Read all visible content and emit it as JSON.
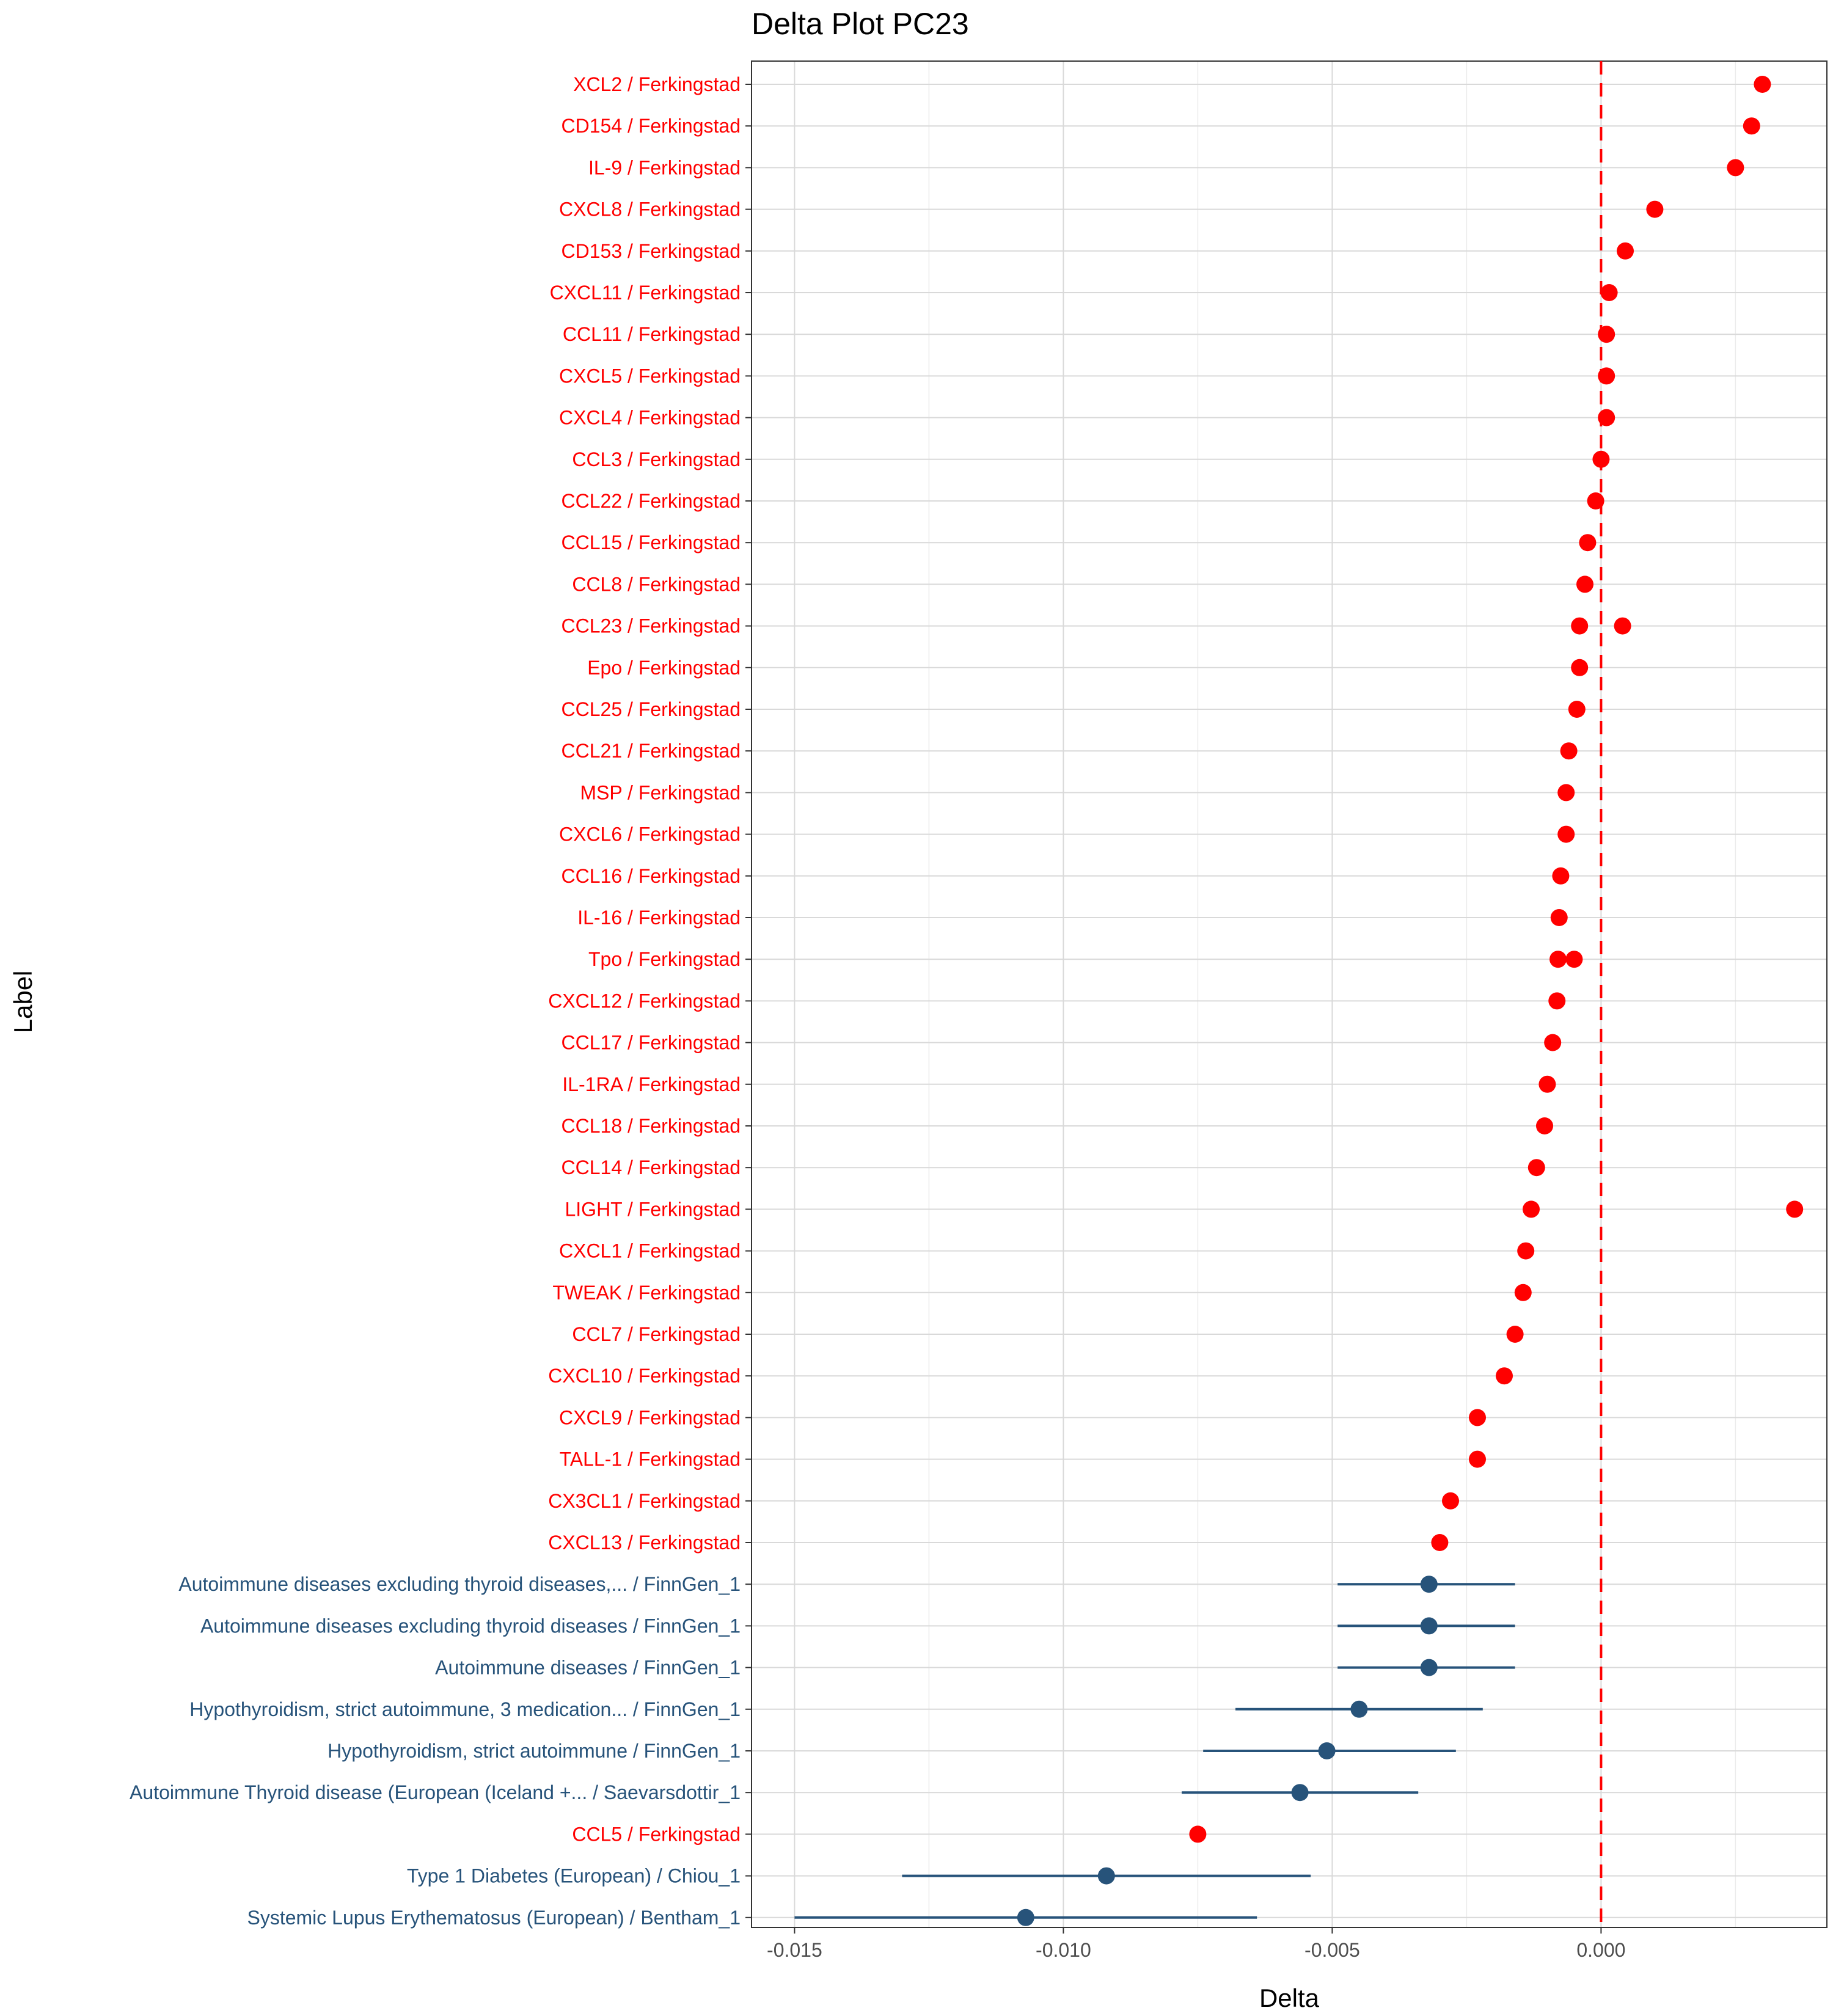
{
  "chart_data": {
    "type": "scatter",
    "title": "Delta Plot PC23",
    "xlabel": "Delta",
    "ylabel": "Label",
    "xlim": [
      -0.0158,
      0.0042
    ],
    "xticks": [
      {
        "value": -0.015,
        "label": "-0.015"
      },
      {
        "value": -0.01,
        "label": "-0.010"
      },
      {
        "value": -0.005,
        "label": "-0.005"
      },
      {
        "value": 0.0,
        "label": "0.000"
      }
    ],
    "reference_line": {
      "x": 0,
      "style": "dashed",
      "color": "#ff0000"
    },
    "grid": true,
    "colors": {
      "ferkingstad": "#ff0000",
      "gwas": "#27537a"
    },
    "categories": [
      {
        "label": "XCL2 / Ferkingstad",
        "group": "ferkingstad",
        "points": [
          0.003
        ]
      },
      {
        "label": "CD154 / Ferkingstad",
        "group": "ferkingstad",
        "points": [
          0.0028
        ]
      },
      {
        "label": "IL-9 / Ferkingstad",
        "group": "ferkingstad",
        "points": [
          0.0025
        ]
      },
      {
        "label": "CXCL8 / Ferkingstad",
        "group": "ferkingstad",
        "points": [
          0.001
        ]
      },
      {
        "label": "CD153 / Ferkingstad",
        "group": "ferkingstad",
        "points": [
          0.00045
        ]
      },
      {
        "label": "CXCL11 / Ferkingstad",
        "group": "ferkingstad",
        "points": [
          0.00015
        ]
      },
      {
        "label": "CCL11 / Ferkingstad",
        "group": "ferkingstad",
        "points": [
          0.0001
        ]
      },
      {
        "label": "CXCL5 / Ferkingstad",
        "group": "ferkingstad",
        "points": [
          0.0001
        ]
      },
      {
        "label": "CXCL4 / Ferkingstad",
        "group": "ferkingstad",
        "points": [
          0.0001
        ]
      },
      {
        "label": "CCL3 / Ferkingstad",
        "group": "ferkingstad",
        "points": [
          0.0
        ]
      },
      {
        "label": "CCL22 / Ferkingstad",
        "group": "ferkingstad",
        "points": [
          -0.0001
        ]
      },
      {
        "label": "CCL15 / Ferkingstad",
        "group": "ferkingstad",
        "points": [
          -0.00025
        ]
      },
      {
        "label": "CCL8 / Ferkingstad",
        "group": "ferkingstad",
        "points": [
          -0.0003
        ]
      },
      {
        "label": "CCL23 / Ferkingstad",
        "group": "ferkingstad",
        "points": [
          -0.0004,
          0.0004
        ]
      },
      {
        "label": "Epo / Ferkingstad",
        "group": "ferkingstad",
        "points": [
          -0.0004
        ]
      },
      {
        "label": "CCL25 / Ferkingstad",
        "group": "ferkingstad",
        "points": [
          -0.00045
        ]
      },
      {
        "label": "CCL21 / Ferkingstad",
        "group": "ferkingstad",
        "points": [
          -0.0006
        ]
      },
      {
        "label": "MSP / Ferkingstad",
        "group": "ferkingstad",
        "points": [
          -0.00065
        ]
      },
      {
        "label": "CXCL6 / Ferkingstad",
        "group": "ferkingstad",
        "points": [
          -0.00065
        ]
      },
      {
        "label": "CCL16 / Ferkingstad",
        "group": "ferkingstad",
        "points": [
          -0.00075
        ]
      },
      {
        "label": "IL-16 / Ferkingstad",
        "group": "ferkingstad",
        "points": [
          -0.00078
        ]
      },
      {
        "label": "Tpo / Ferkingstad",
        "group": "ferkingstad",
        "points": [
          -0.0008,
          -0.0005
        ]
      },
      {
        "label": "CXCL12 / Ferkingstad",
        "group": "ferkingstad",
        "points": [
          -0.00082
        ]
      },
      {
        "label": "CCL17 / Ferkingstad",
        "group": "ferkingstad",
        "points": [
          -0.0009
        ]
      },
      {
        "label": "IL-1RA / Ferkingstad",
        "group": "ferkingstad",
        "points": [
          -0.001
        ]
      },
      {
        "label": "CCL18 / Ferkingstad",
        "group": "ferkingstad",
        "points": [
          -0.00105
        ]
      },
      {
        "label": "CCL14 / Ferkingstad",
        "group": "ferkingstad",
        "points": [
          -0.0012
        ]
      },
      {
        "label": "LIGHT / Ferkingstad",
        "group": "ferkingstad",
        "points": [
          -0.0013,
          0.0036
        ]
      },
      {
        "label": "CXCL1 / Ferkingstad",
        "group": "ferkingstad",
        "points": [
          -0.0014
        ]
      },
      {
        "label": "TWEAK / Ferkingstad",
        "group": "ferkingstad",
        "points": [
          -0.00145
        ]
      },
      {
        "label": "CCL7 / Ferkingstad",
        "group": "ferkingstad",
        "points": [
          -0.0016
        ]
      },
      {
        "label": "CXCL10 / Ferkingstad",
        "group": "ferkingstad",
        "points": [
          -0.0018
        ]
      },
      {
        "label": "CXCL9 / Ferkingstad",
        "group": "ferkingstad",
        "points": [
          -0.0023
        ]
      },
      {
        "label": "TALL-1 / Ferkingstad",
        "group": "ferkingstad",
        "points": [
          -0.0023
        ]
      },
      {
        "label": "CX3CL1 / Ferkingstad",
        "group": "ferkingstad",
        "points": [
          -0.0028
        ]
      },
      {
        "label": "CXCL13 / Ferkingstad",
        "group": "ferkingstad",
        "points": [
          -0.003
        ]
      },
      {
        "label": "Autoimmune diseases excluding thyroid diseases,... / FinnGen_1",
        "group": "gwas",
        "points": [
          -0.0032
        ],
        "ci": [
          -0.0049,
          -0.0016
        ]
      },
      {
        "label": "Autoimmune diseases excluding thyroid diseases / FinnGen_1",
        "group": "gwas",
        "points": [
          -0.0032
        ],
        "ci": [
          -0.0049,
          -0.0016
        ]
      },
      {
        "label": "Autoimmune diseases / FinnGen_1",
        "group": "gwas",
        "points": [
          -0.0032
        ],
        "ci": [
          -0.0049,
          -0.0016
        ]
      },
      {
        "label": "Hypothyroidism, strict autoimmune, 3 medication... / FinnGen_1",
        "group": "gwas",
        "points": [
          -0.0045
        ],
        "ci": [
          -0.0068,
          -0.0022
        ]
      },
      {
        "label": "Hypothyroidism, strict autoimmune / FinnGen_1",
        "group": "gwas",
        "points": [
          -0.0051
        ],
        "ci": [
          -0.0074,
          -0.0027
        ]
      },
      {
        "label": "Autoimmune Thyroid disease (European (Iceland +... / Saevarsdottir_1",
        "group": "gwas",
        "points": [
          -0.0056
        ],
        "ci": [
          -0.0078,
          -0.0034
        ]
      },
      {
        "label": "CCL5 / Ferkingstad",
        "group": "ferkingstad",
        "points": [
          -0.0075
        ]
      },
      {
        "label": "Type 1 Diabetes (European) / Chiou_1",
        "group": "gwas",
        "points": [
          -0.0092
        ],
        "ci": [
          -0.013,
          -0.0054
        ]
      },
      {
        "label": "Systemic Lupus Erythematosus (European) / Bentham_1",
        "group": "gwas",
        "points": [
          -0.0107
        ],
        "ci": [
          -0.015,
          -0.0064
        ]
      }
    ]
  }
}
